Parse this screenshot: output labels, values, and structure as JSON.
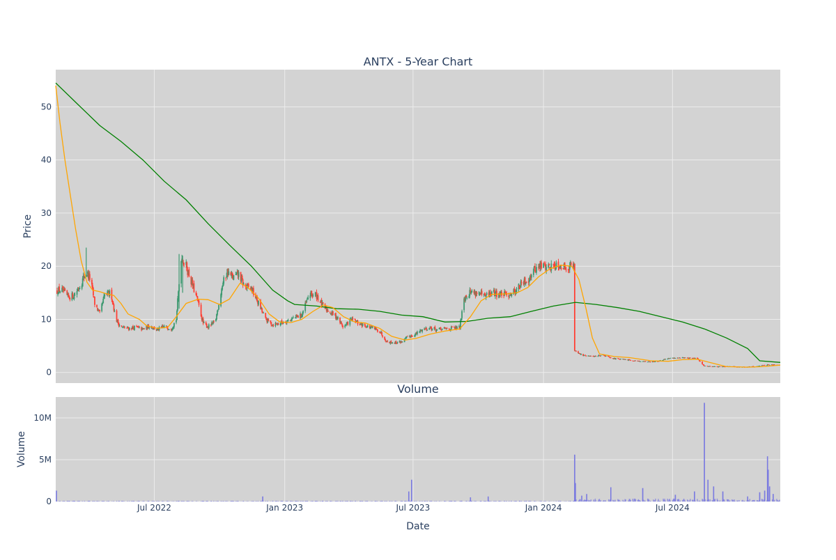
{
  "chart_data": [
    {
      "type": "candlestick",
      "title": "ANTX - 5-Year Chart",
      "xlabel": "",
      "ylabel": "Price",
      "ylim": [
        -2,
        57
      ],
      "yticks": [
        0,
        10,
        20,
        30,
        40,
        50
      ],
      "xlim": [
        "2022-02-12",
        "2024-11-30"
      ],
      "xticks": [
        {
          "date": "2022-07-01",
          "label": "Jul 2022"
        },
        {
          "date": "2023-01-01",
          "label": "Jan 2023"
        },
        {
          "date": "2023-07-01",
          "label": "Jul 2023"
        },
        {
          "date": "2024-01-01",
          "label": "Jan 2024"
        },
        {
          "date": "2024-07-01",
          "label": "Jul 2024"
        }
      ],
      "colors": {
        "increasing": "#3d9970",
        "decreasing": "#ff4136",
        "plot_bg": "#d3d3d3",
        "grid": "#ececec"
      },
      "price_close": [
        [
          "2022-02-12",
          15.3
        ],
        [
          "2022-02-20",
          15.6
        ],
        [
          "2022-03-01",
          14.2
        ],
        [
          "2022-03-10",
          14.5
        ],
        [
          "2022-03-20",
          16.8
        ],
        [
          "2022-03-27",
          19.0
        ],
        [
          "2022-04-02",
          17.5
        ],
        [
          "2022-04-08",
          13.0
        ],
        [
          "2022-04-15",
          11.0
        ],
        [
          "2022-04-22",
          14.5
        ],
        [
          "2022-05-01",
          15.0
        ],
        [
          "2022-05-08",
          10.0
        ],
        [
          "2022-05-15",
          8.5
        ],
        [
          "2022-05-25",
          8.3
        ],
        [
          "2022-06-05",
          8.5
        ],
        [
          "2022-06-15",
          8.1
        ],
        [
          "2022-06-25",
          8.8
        ],
        [
          "2022-07-05",
          8.0
        ],
        [
          "2022-07-15",
          8.6
        ],
        [
          "2022-07-25",
          8.3
        ],
        [
          "2022-08-01",
          10.0
        ],
        [
          "2022-08-08",
          21.8
        ],
        [
          "2022-08-15",
          20.0
        ],
        [
          "2022-08-25",
          16.0
        ],
        [
          "2022-09-01",
          13.0
        ],
        [
          "2022-09-08",
          9.2
        ],
        [
          "2022-09-15",
          8.6
        ],
        [
          "2022-09-25",
          9.5
        ],
        [
          "2022-10-05",
          16.5
        ],
        [
          "2022-10-12",
          19.0
        ],
        [
          "2022-10-20",
          17.8
        ],
        [
          "2022-10-28",
          18.5
        ],
        [
          "2022-11-05",
          16.2
        ],
        [
          "2022-11-15",
          15.8
        ],
        [
          "2022-11-25",
          13.0
        ],
        [
          "2022-12-05",
          10.0
        ],
        [
          "2022-12-15",
          9.0
        ],
        [
          "2022-12-25",
          9.3
        ],
        [
          "2023-01-05",
          9.8
        ],
        [
          "2023-01-15",
          10.3
        ],
        [
          "2023-01-25",
          10.8
        ],
        [
          "2023-02-05",
          14.8
        ],
        [
          "2023-02-15",
          14.5
        ],
        [
          "2023-02-25",
          12.2
        ],
        [
          "2023-03-05",
          11.5
        ],
        [
          "2023-03-15",
          10.5
        ],
        [
          "2023-03-25",
          8.5
        ],
        [
          "2023-04-05",
          10.0
        ],
        [
          "2023-04-15",
          9.2
        ],
        [
          "2023-04-25",
          8.8
        ],
        [
          "2023-05-05",
          8.3
        ],
        [
          "2023-05-15",
          7.8
        ],
        [
          "2023-05-25",
          5.8
        ],
        [
          "2023-06-05",
          5.6
        ],
        [
          "2023-06-15",
          5.8
        ],
        [
          "2023-06-25",
          6.8
        ],
        [
          "2023-07-05",
          7.2
        ],
        [
          "2023-07-15",
          8.2
        ],
        [
          "2023-07-25",
          8.4
        ],
        [
          "2023-08-05",
          8.0
        ],
        [
          "2023-08-15",
          8.2
        ],
        [
          "2023-08-25",
          8.3
        ],
        [
          "2023-09-05",
          8.4
        ],
        [
          "2023-09-10",
          14.0
        ],
        [
          "2023-09-20",
          15.2
        ],
        [
          "2023-09-30",
          15.0
        ],
        [
          "2023-10-10",
          14.2
        ],
        [
          "2023-10-20",
          15.0
        ],
        [
          "2023-10-30",
          14.8
        ],
        [
          "2023-11-10",
          14.6
        ],
        [
          "2023-11-20",
          15.2
        ],
        [
          "2023-11-30",
          16.5
        ],
        [
          "2023-12-10",
          17.5
        ],
        [
          "2023-12-20",
          19.5
        ],
        [
          "2023-12-30",
          20.2
        ],
        [
          "2024-01-10",
          19.8
        ],
        [
          "2024-01-20",
          20.5
        ],
        [
          "2024-01-30",
          19.8
        ],
        [
          "2024-02-10",
          20.2
        ],
        [
          "2024-02-13",
          20.0
        ],
        [
          "2024-02-14",
          4.2
        ],
        [
          "2024-02-25",
          3.2
        ],
        [
          "2024-03-10",
          3.0
        ],
        [
          "2024-03-25",
          3.3
        ],
        [
          "2024-04-10",
          2.6
        ],
        [
          "2024-04-25",
          2.4
        ],
        [
          "2024-05-10",
          2.2
        ],
        [
          "2024-05-25",
          2.0
        ],
        [
          "2024-06-10",
          2.1
        ],
        [
          "2024-06-25",
          2.6
        ],
        [
          "2024-07-10",
          2.8
        ],
        [
          "2024-07-25",
          2.7
        ],
        [
          "2024-08-05",
          2.6
        ],
        [
          "2024-08-15",
          1.2
        ],
        [
          "2024-09-01",
          1.1
        ],
        [
          "2024-09-20",
          1.1
        ],
        [
          "2024-10-10",
          1.0
        ],
        [
          "2024-10-25",
          1.1
        ],
        [
          "2024-11-05",
          1.3
        ],
        [
          "2024-11-15",
          1.5
        ],
        [
          "2024-11-30",
          1.4
        ]
      ],
      "ma_short": [
        [
          "2022-02-12",
          54.0
        ],
        [
          "2022-02-18",
          47.0
        ],
        [
          "2022-02-25",
          40.0
        ],
        [
          "2022-03-05",
          33.0
        ],
        [
          "2022-03-12",
          27.0
        ],
        [
          "2022-03-20",
          21.0
        ],
        [
          "2022-03-28",
          17.0
        ],
        [
          "2022-04-05",
          15.5
        ],
        [
          "2022-04-15",
          15.2
        ],
        [
          "2022-04-25",
          14.8
        ],
        [
          "2022-05-05",
          14.5
        ],
        [
          "2022-05-15",
          13.0
        ],
        [
          "2022-05-25",
          11.0
        ],
        [
          "2022-06-10",
          10.0
        ],
        [
          "2022-06-20",
          8.8
        ],
        [
          "2022-07-05",
          8.3
        ],
        [
          "2022-07-20",
          8.5
        ],
        [
          "2022-08-01",
          10.5
        ],
        [
          "2022-08-15",
          13.0
        ],
        [
          "2022-09-01",
          13.8
        ],
        [
          "2022-09-15",
          13.7
        ],
        [
          "2022-10-01",
          12.8
        ],
        [
          "2022-10-15",
          13.8
        ],
        [
          "2022-10-30",
          16.8
        ],
        [
          "2022-11-10",
          16.0
        ],
        [
          "2022-11-25",
          14.0
        ],
        [
          "2022-12-10",
          11.0
        ],
        [
          "2022-12-25",
          9.5
        ],
        [
          "2023-01-10",
          9.4
        ],
        [
          "2023-01-25",
          10.0
        ],
        [
          "2023-02-10",
          11.5
        ],
        [
          "2023-02-25",
          12.7
        ],
        [
          "2023-03-10",
          12.2
        ],
        [
          "2023-03-25",
          10.5
        ],
        [
          "2023-04-10",
          9.5
        ],
        [
          "2023-04-25",
          9.3
        ],
        [
          "2023-05-15",
          8.3
        ],
        [
          "2023-06-01",
          6.8
        ],
        [
          "2023-06-20",
          6.1
        ],
        [
          "2023-07-05",
          6.4
        ],
        [
          "2023-07-25",
          7.2
        ],
        [
          "2023-08-15",
          7.8
        ],
        [
          "2023-09-05",
          8.2
        ],
        [
          "2023-09-20",
          10.5
        ],
        [
          "2023-10-05",
          13.5
        ],
        [
          "2023-10-20",
          14.7
        ],
        [
          "2023-11-10",
          14.8
        ],
        [
          "2023-11-25",
          15.0
        ],
        [
          "2023-12-10",
          16.0
        ],
        [
          "2023-12-25",
          18.0
        ],
        [
          "2024-01-10",
          19.5
        ],
        [
          "2024-01-25",
          20.2
        ],
        [
          "2024-02-10",
          20.0
        ],
        [
          "2024-02-20",
          17.5
        ],
        [
          "2024-03-01",
          12.0
        ],
        [
          "2024-03-10",
          6.5
        ],
        [
          "2024-03-20",
          3.5
        ],
        [
          "2024-04-10",
          3.0
        ],
        [
          "2024-05-01",
          2.8
        ],
        [
          "2024-06-01",
          2.2
        ],
        [
          "2024-06-25",
          2.1
        ],
        [
          "2024-07-15",
          2.4
        ],
        [
          "2024-08-05",
          2.5
        ],
        [
          "2024-08-25",
          1.8
        ],
        [
          "2024-09-15",
          1.1
        ],
        [
          "2024-10-15",
          1.0
        ],
        [
          "2024-11-05",
          1.1
        ],
        [
          "2024-11-30",
          1.4
        ]
      ],
      "ma_long": [
        [
          "2022-02-12",
          54.5
        ],
        [
          "2022-03-15",
          50.5
        ],
        [
          "2022-04-15",
          46.5
        ],
        [
          "2022-05-15",
          43.5
        ],
        [
          "2022-06-15",
          40.0
        ],
        [
          "2022-07-15",
          36.0
        ],
        [
          "2022-08-15",
          32.5
        ],
        [
          "2022-09-15",
          28.0
        ],
        [
          "2022-10-15",
          24.0
        ],
        [
          "2022-11-15",
          20.0
        ],
        [
          "2022-12-15",
          15.5
        ],
        [
          "2023-01-05",
          13.5
        ],
        [
          "2023-01-15",
          12.8
        ],
        [
          "2023-02-15",
          12.5
        ],
        [
          "2023-03-15",
          12.0
        ],
        [
          "2023-04-15",
          11.9
        ],
        [
          "2023-05-15",
          11.5
        ],
        [
          "2023-06-15",
          10.8
        ],
        [
          "2023-07-15",
          10.5
        ],
        [
          "2023-08-15",
          9.5
        ],
        [
          "2023-09-15",
          9.6
        ],
        [
          "2023-10-15",
          10.2
        ],
        [
          "2023-11-15",
          10.5
        ],
        [
          "2023-12-15",
          11.5
        ],
        [
          "2024-01-15",
          12.5
        ],
        [
          "2024-02-15",
          13.2
        ],
        [
          "2024-03-15",
          12.8
        ],
        [
          "2024-04-15",
          12.2
        ],
        [
          "2024-05-15",
          11.5
        ],
        [
          "2024-06-15",
          10.5
        ],
        [
          "2024-07-15",
          9.5
        ],
        [
          "2024-08-15",
          8.2
        ],
        [
          "2024-09-15",
          6.5
        ],
        [
          "2024-10-15",
          4.5
        ],
        [
          "2024-11-01",
          2.2
        ],
        [
          "2024-11-30",
          1.9
        ]
      ],
      "ma_colors": {
        "short": "#ffa500",
        "long": "#008000"
      }
    },
    {
      "type": "bar",
      "title": "Volume",
      "xlabel": "Date",
      "ylabel": "Volume",
      "ylim": [
        0,
        12500000
      ],
      "yticks": [
        {
          "value": 0,
          "label": "0"
        },
        {
          "value": 5000000,
          "label": "5M"
        },
        {
          "value": 10000000,
          "label": "10M"
        }
      ],
      "bar_color": "#7b7be0",
      "spikes": [
        [
          "2022-02-13",
          1300000
        ],
        [
          "2022-12-01",
          600000
        ],
        [
          "2023-06-25",
          1200000
        ],
        [
          "2023-06-29",
          2600000
        ],
        [
          "2023-09-20",
          500000
        ],
        [
          "2023-10-15",
          600000
        ],
        [
          "2024-02-14",
          5600000
        ],
        [
          "2024-02-15",
          2200000
        ],
        [
          "2024-02-24",
          700000
        ],
        [
          "2024-03-02",
          900000
        ],
        [
          "2024-04-05",
          1700000
        ],
        [
          "2024-05-20",
          1600000
        ],
        [
          "2024-07-05",
          800000
        ],
        [
          "2024-08-01",
          1200000
        ],
        [
          "2024-08-15",
          11800000
        ],
        [
          "2024-08-20",
          2600000
        ],
        [
          "2024-08-28",
          1800000
        ],
        [
          "2024-09-10",
          1200000
        ],
        [
          "2024-10-15",
          600000
        ],
        [
          "2024-11-01",
          1100000
        ],
        [
          "2024-11-08",
          1300000
        ],
        [
          "2024-11-12",
          5400000
        ],
        [
          "2024-11-13",
          3800000
        ],
        [
          "2024-11-15",
          1800000
        ],
        [
          "2024-11-20",
          900000
        ]
      ]
    }
  ]
}
